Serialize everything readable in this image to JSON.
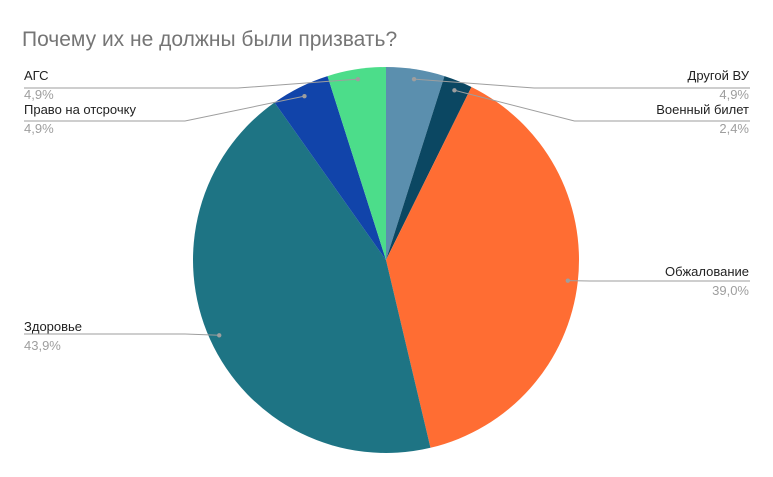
{
  "chart_data": {
    "type": "pie",
    "title": "Почему их не должны были призвать?",
    "slices": [
      {
        "label": "Другой ВУ",
        "value": 4.9,
        "display": "4,9%",
        "color": "#5b8fae"
      },
      {
        "label": "Военный билет",
        "value": 2.4,
        "display": "2,4%",
        "color": "#0b4762"
      },
      {
        "label": "Обжалование",
        "value": 39.0,
        "display": "39,0%",
        "color": "#ff6d33"
      },
      {
        "label": "Здоровье",
        "value": 43.9,
        "display": "43,9%",
        "color": "#1e7484"
      },
      {
        "label": "Право на отсрочку",
        "value": 4.9,
        "display": "4,9%",
        "color": "#1144aa"
      },
      {
        "label": "АГС",
        "value": 4.9,
        "display": "4,9%",
        "color": "#4cdd8a"
      }
    ],
    "start_angle": "top",
    "direction": "clockwise",
    "legend": "none",
    "labels": "outside-with-leader-lines"
  }
}
